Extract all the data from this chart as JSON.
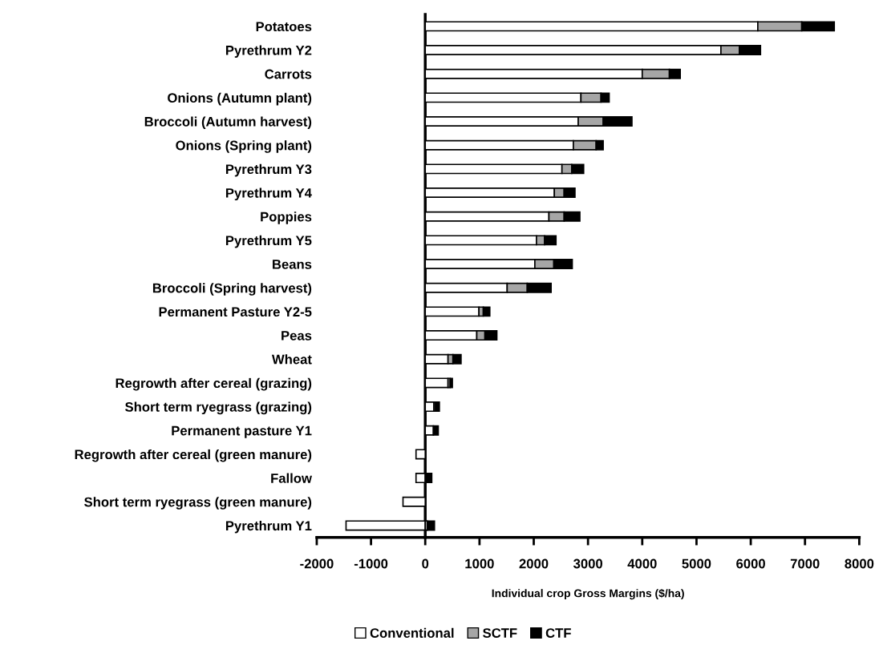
{
  "chart_data": {
    "type": "bar",
    "orientation": "horizontal",
    "stacked": true,
    "xlabel": "Individual crop Gross Margins ($/ha)",
    "categories": [
      "Potatoes",
      "Pyrethrum Y2",
      "Carrots",
      "Onions (Autumn plant)",
      "Broccoli (Autumn harvest)",
      "Onions (Spring plant)",
      "Pyrethrum Y3",
      "Pyrethrum Y4",
      "Poppies",
      "Pyrethrum Y5",
      "Beans",
      "Broccoli (Spring harvest)",
      "Permanent Pasture Y2-5",
      "Peas",
      "Wheat",
      "Regrowth after cereal (grazing)",
      "Short term ryegrass (grazing)",
      "Permanent pasture Y1",
      "Regrowth after cereal (green manure)",
      "Fallow",
      "Short term ryegrass (green manure)",
      "Pyrethrum Y1"
    ],
    "series": [
      {
        "name": "Conventional",
        "color": "#ffffff",
        "values": [
          6130,
          5450,
          4000,
          2870,
          2820,
          2730,
          2520,
          2380,
          2280,
          2050,
          2020,
          1510,
          990,
          950,
          420,
          420,
          160,
          150,
          -170,
          -170,
          -410,
          -1460
        ]
      },
      {
        "name": "SCTF",
        "color": "#a6a6a6",
        "values": [
          810,
          340,
          500,
          370,
          460,
          420,
          180,
          180,
          280,
          150,
          350,
          370,
          80,
          150,
          90,
          40,
          30,
          null,
          null,
          null,
          null,
          40
        ]
      },
      {
        "name": "CTF",
        "color": "#000000",
        "values": [
          600,
          390,
          200,
          150,
          530,
          130,
          220,
          200,
          290,
          210,
          340,
          440,
          120,
          220,
          150,
          40,
          70,
          90,
          null,
          120,
          null,
          130
        ]
      }
    ],
    "xlim": [
      -2000,
      8000
    ],
    "xticks": [
      -2000,
      -1000,
      0,
      1000,
      2000,
      3000,
      4000,
      5000,
      6000,
      7000,
      8000
    ],
    "legend": "bottom"
  }
}
